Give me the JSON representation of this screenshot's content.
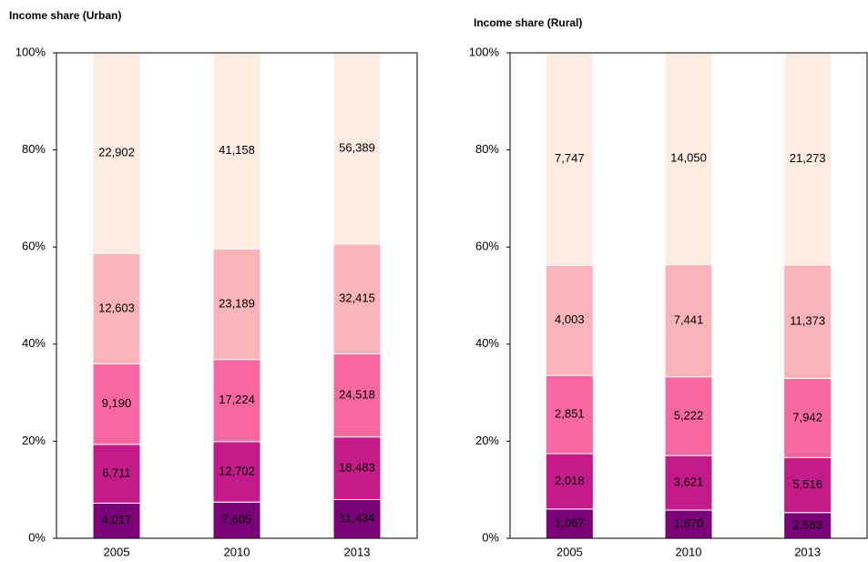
{
  "chart_data": [
    {
      "type": "bar",
      "stacked": "percent",
      "title": "Income share (Urban)",
      "categories": [
        "2005",
        "2010",
        "2013"
      ],
      "ylim": [
        0,
        100
      ],
      "yticks": [
        {
          "value": 0,
          "label": "0%"
        },
        {
          "value": 20,
          "label": "20%"
        },
        {
          "value": 40,
          "label": "40%"
        },
        {
          "value": 60,
          "label": "60%"
        },
        {
          "value": 80,
          "label": "80%"
        },
        {
          "value": 100,
          "label": "100%"
        }
      ],
      "series": [
        {
          "color": "#7a0177",
          "values": [
            4017,
            7605,
            11434
          ],
          "value_labels": [
            "4,017",
            "7,605",
            "11,434"
          ]
        },
        {
          "color": "#c51b8a",
          "values": [
            6711,
            12702,
            18483
          ],
          "value_labels": [
            "6,711",
            "12,702",
            "18,483"
          ]
        },
        {
          "color": "#f768a1",
          "values": [
            9190,
            17224,
            24518
          ],
          "value_labels": [
            "9,190",
            "17,224",
            "24,518"
          ]
        },
        {
          "color": "#fbb4b9",
          "values": [
            12603,
            23189,
            32415
          ],
          "value_labels": [
            "12,603",
            "23,189",
            "32,415"
          ]
        },
        {
          "color": "#feebe2",
          "values": [
            22902,
            41158,
            56389
          ],
          "value_labels": [
            "22,902",
            "41,158",
            "56,389"
          ]
        }
      ]
    },
    {
      "type": "bar",
      "stacked": "percent",
      "title": "Income share (Rural)",
      "categories": [
        "2005",
        "2010",
        "2013"
      ],
      "ylim": [
        0,
        100
      ],
      "yticks": [
        {
          "value": 0,
          "label": "0%"
        },
        {
          "value": 20,
          "label": "20%"
        },
        {
          "value": 40,
          "label": "40%"
        },
        {
          "value": 60,
          "label": "60%"
        },
        {
          "value": 80,
          "label": "80%"
        },
        {
          "value": 100,
          "label": "100%"
        }
      ],
      "series": [
        {
          "color": "#7a0177",
          "values": [
            1067,
            1870,
            2583
          ],
          "value_labels": [
            "1,067",
            "1,870",
            "2,583"
          ]
        },
        {
          "color": "#c51b8a",
          "values": [
            2018,
            3621,
            5516
          ],
          "value_labels": [
            "2,018",
            "3,621",
            "5,516"
          ]
        },
        {
          "color": "#f768a1",
          "values": [
            2851,
            5222,
            7942
          ],
          "value_labels": [
            "2,851",
            "5,222",
            "7,942"
          ]
        },
        {
          "color": "#fbb4b9",
          "values": [
            4003,
            7441,
            11373
          ],
          "value_labels": [
            "4,003",
            "7,441",
            "11,373"
          ]
        },
        {
          "color": "#feebe2",
          "values": [
            7747,
            14050,
            21273
          ],
          "value_labels": [
            "7,747",
            "14,050",
            "21,273"
          ]
        }
      ]
    }
  ]
}
